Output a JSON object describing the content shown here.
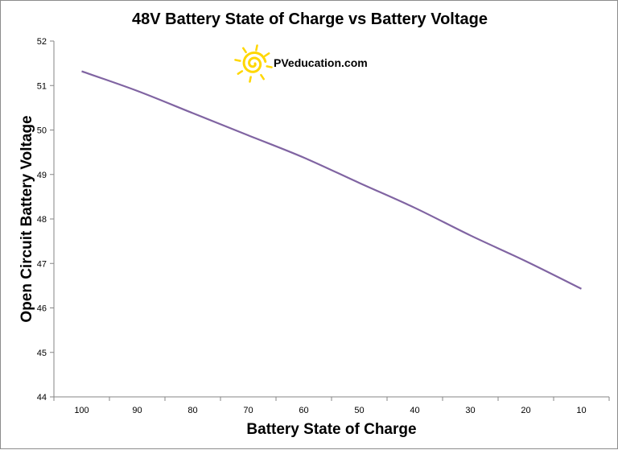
{
  "chart_data": {
    "type": "line",
    "title": "48V Battery State of Charge vs Battery Voltage",
    "xlabel": "Battery State of Charge",
    "ylabel": "Open Circuit Battery Voltage",
    "categories": [
      "100",
      "90",
      "80",
      "70",
      "60",
      "50",
      "40",
      "30",
      "20",
      "10"
    ],
    "series": [
      {
        "values": [
          51.32,
          50.88,
          50.38,
          49.88,
          49.38,
          48.81,
          48.25,
          47.63,
          47.05,
          46.43
        ],
        "color": "#8064a2"
      }
    ],
    "ylim": [
      44,
      52
    ],
    "yticks": [
      44,
      45,
      46,
      47,
      48,
      49,
      50,
      51,
      52
    ],
    "grid": false,
    "legend": "none"
  },
  "watermark": {
    "text": "PVeducation.com",
    "icon": "sun-spiral-icon",
    "color": "#ffd700"
  }
}
